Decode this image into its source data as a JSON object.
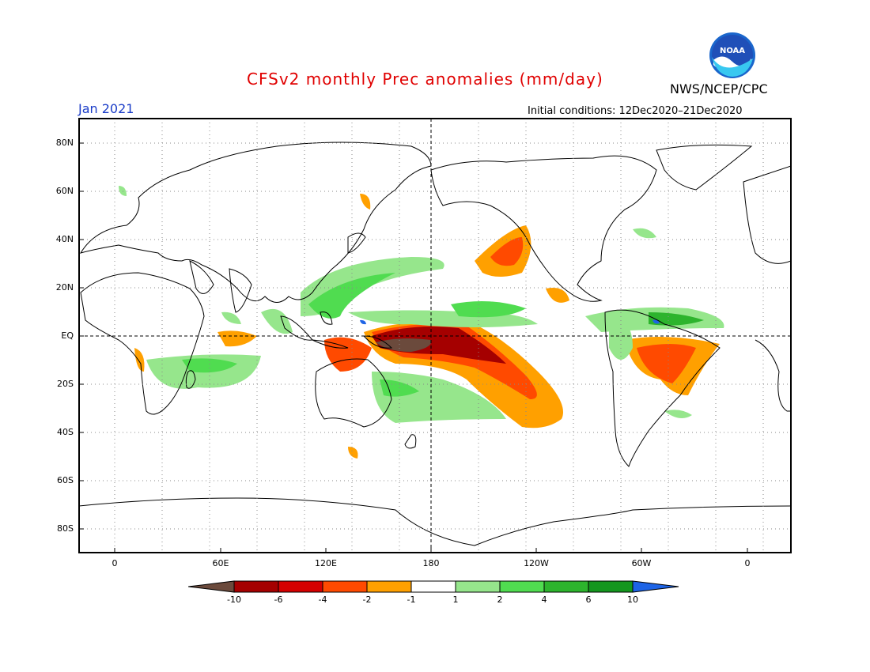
{
  "header": {
    "title": "CFSv2 monthly Prec anomalies (mm/day)",
    "title_color": "#e00000",
    "agency": "NWS/NCEP/CPC",
    "month": "Jan 2021",
    "month_color": "#1a3cc8",
    "initial_conditions": "Initial conditions: 12Dec2020–21Dec2020",
    "logo_text": "NOAA"
  },
  "map": {
    "projection": "cylindrical-equidistant",
    "lon_range": [
      -20,
      340
    ],
    "lat_range": [
      -90,
      90
    ],
    "lat_labels": [
      "80N",
      "60N",
      "40N",
      "20N",
      "EQ",
      "20S",
      "40S",
      "60S",
      "80S"
    ],
    "lon_labels": [
      "0",
      "60E",
      "120E",
      "180",
      "120W",
      "60W",
      "0"
    ],
    "gridlines": "dotted",
    "reference_lines": [
      "equator",
      "dateline"
    ]
  },
  "colorbar": {
    "labels": [
      "-10",
      "-6",
      "-4",
      "-2",
      "-1",
      "1",
      "2",
      "4",
      "6",
      "10"
    ],
    "colors": [
      "#6b4a3c",
      "#a50000",
      "#d40000",
      "#ff4a00",
      "#ffa000",
      "#ffffff",
      "#96e68c",
      "#50dc50",
      "#2db42d",
      "#14961e",
      "#1e64e6"
    ]
  }
}
